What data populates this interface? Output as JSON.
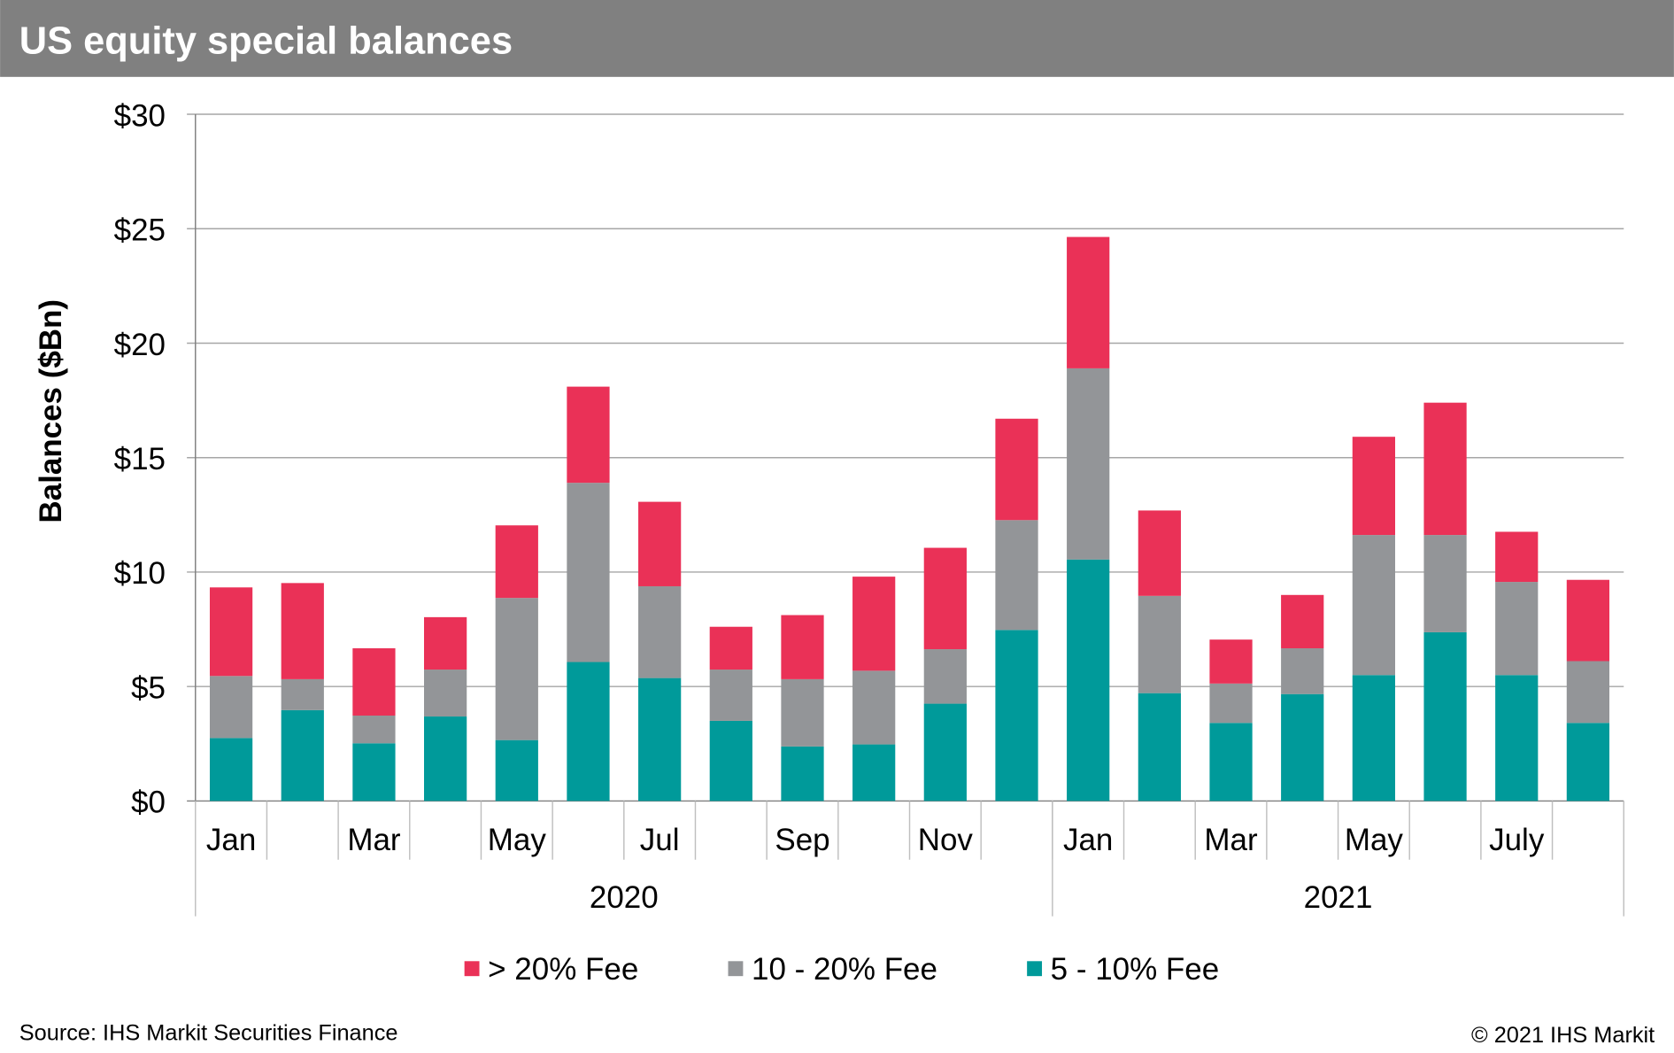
{
  "header": {
    "title": "US equity special balances"
  },
  "footer": {
    "source": "Source: IHS Markit Securities Finance",
    "copyright": "© 2021 IHS Markit"
  },
  "colors": {
    "header_bg": "#808080",
    "gt20": "#ea3157",
    "10to20": "#939598",
    "5to10": "#009a9a",
    "grid": "#a6a6a6"
  },
  "chart_data": {
    "type": "bar",
    "stacked": true,
    "title": "US equity special balances",
    "ylabel": "Balances ($Bn)",
    "ylim": [
      0,
      30
    ],
    "yticks": [
      0,
      5,
      10,
      15,
      20,
      25,
      30
    ],
    "ytick_labels": [
      "$0",
      "$5",
      "$10",
      "$15",
      "$20",
      "$25",
      "$30"
    ],
    "grid": true,
    "legend_position": "bottom",
    "categories": [
      "Jan",
      "",
      "Mar",
      "",
      "May",
      "",
      "Jul",
      "",
      "Sep",
      "",
      "Nov",
      "",
      "Jan",
      "",
      "Mar",
      "",
      "May",
      "",
      "July",
      ""
    ],
    "year_groups": [
      {
        "label": "2020",
        "count": 12
      },
      {
        "label": "2021",
        "count": 8
      }
    ],
    "series": [
      {
        "name": "5 - 10% Fee",
        "color": "#009a9a",
        "values": [
          2.75,
          3.97,
          2.52,
          3.69,
          2.66,
          6.07,
          5.37,
          3.5,
          2.38,
          2.47,
          4.25,
          7.47,
          10.55,
          4.71,
          3.41,
          4.67,
          5.5,
          7.37,
          5.5,
          3.41
        ]
      },
      {
        "name": "10 - 20% Fee",
        "color": "#939598",
        "values": [
          2.71,
          1.35,
          1.21,
          2.05,
          6.21,
          7.83,
          4.01,
          2.24,
          2.94,
          3.22,
          2.38,
          4.8,
          8.35,
          4.25,
          1.72,
          2.0,
          6.12,
          4.25,
          4.07,
          2.7
        ]
      },
      {
        "name": "> 20% Fee",
        "color": "#ea3157",
        "values": [
          3.87,
          4.2,
          2.94,
          2.29,
          3.17,
          4.2,
          3.69,
          1.87,
          2.8,
          4.11,
          4.43,
          4.43,
          5.74,
          3.73,
          1.92,
          2.33,
          4.29,
          5.78,
          2.19,
          3.55
        ]
      }
    ],
    "legend_order": [
      "> 20% Fee",
      "10 - 20% Fee",
      "5 - 10% Fee"
    ]
  }
}
